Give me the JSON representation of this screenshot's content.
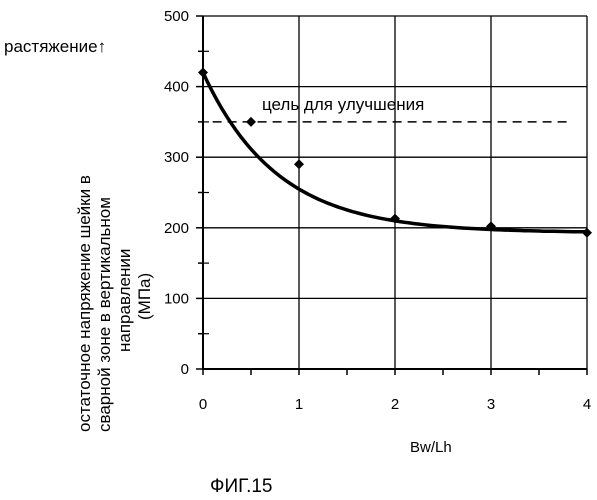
{
  "figure_caption": "ФИГ.15",
  "chart_data": {
    "type": "line",
    "xlabel": "Bw/Lh",
    "ylabel_lines": [
      "остаточное напряжение шейки в",
      "сварной зоне в вертикальном",
      "направлении",
      "(МПа)"
    ],
    "tension_label": "растяжение↑",
    "xlim": [
      0,
      4
    ],
    "ylim": [
      0,
      500
    ],
    "x_ticks": [
      "0",
      "1",
      "2",
      "3",
      "4"
    ],
    "y_ticks": [
      "0",
      "100",
      "200",
      "300",
      "400",
      "500"
    ],
    "grid": true,
    "series": [
      {
        "x": [
          0,
          0.5,
          1,
          2,
          3,
          4
        ],
        "y": [
          420,
          350,
          290,
          213,
          202,
          193
        ]
      }
    ],
    "target_line": {
      "label": "цель для улучшения",
      "y": 350,
      "x_range": [
        0.1,
        3.8
      ]
    }
  }
}
